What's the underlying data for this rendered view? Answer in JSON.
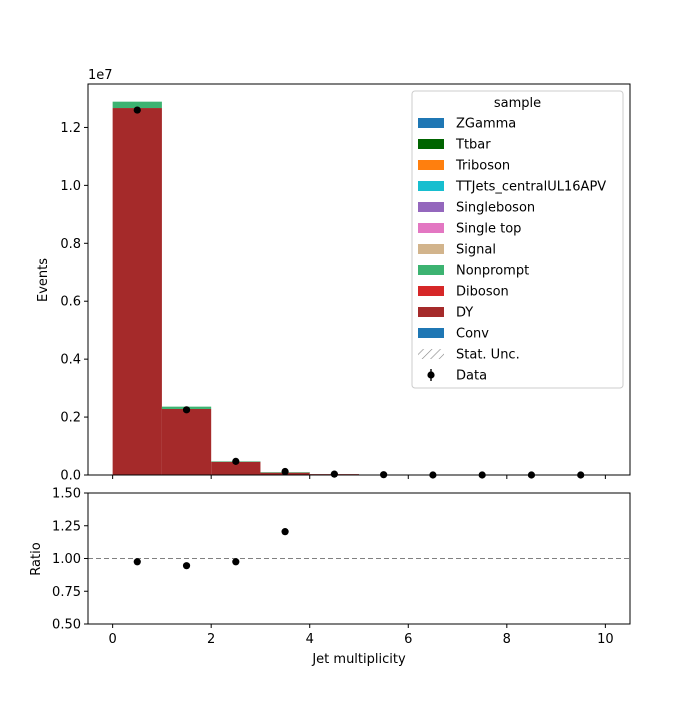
{
  "chart_data": [
    {
      "type": "bar",
      "stacked": true,
      "xlabel": "",
      "ylabel": "Events",
      "y_multiplier_label": "1e7",
      "xlim": [
        -0.5,
        10.5
      ],
      "ylim": [
        0,
        13.5
      ],
      "y_unit_note": "values in units of 1e7",
      "yticks": [
        "0.0",
        "0.2",
        "0.4",
        "0.6",
        "0.8",
        "1.0",
        "1.2"
      ],
      "bins": [
        [
          0,
          1
        ],
        [
          1,
          2
        ],
        [
          2,
          3
        ],
        [
          3,
          4
        ],
        [
          4,
          5
        ],
        [
          5,
          6
        ],
        [
          6,
          7
        ],
        [
          7,
          8
        ],
        [
          8,
          9
        ],
        [
          9,
          10
        ]
      ],
      "series": [
        {
          "name": "DY",
          "color": "#a52a2a",
          "values": [
            12.67,
            2.28,
            0.46,
            0.09,
            0.03,
            0.005,
            0.0,
            0.0,
            0.0,
            0.0
          ]
        },
        {
          "name": "Nonprompt",
          "color": "#3cb371",
          "values": [
            0.22,
            0.08,
            0.01,
            0.002,
            0.0,
            0.0,
            0.0,
            0.0,
            0.0,
            0.0
          ]
        }
      ],
      "data_points": {
        "name": "Data",
        "x": [
          0.5,
          1.5,
          2.5,
          3.5,
          4.5,
          5.5,
          6.5,
          7.5,
          8.5,
          9.5
        ],
        "y": [
          12.6,
          2.25,
          0.47,
          0.12,
          0.03,
          0.01,
          0.0,
          0.0,
          0.0,
          0.0
        ]
      },
      "legend": {
        "title": "sample",
        "placement": "top-right",
        "entries": [
          {
            "label": "ZGamma",
            "kind": "patch",
            "color": "#1f77b4"
          },
          {
            "label": "Ttbar",
            "kind": "patch",
            "color": "#006400"
          },
          {
            "label": "Triboson",
            "kind": "patch",
            "color": "#ff7f0e"
          },
          {
            "label": "TTJets_centralUL16APV",
            "kind": "patch",
            "color": "#17becf"
          },
          {
            "label": "Singleboson",
            "kind": "patch",
            "color": "#9467bd"
          },
          {
            "label": "Single top",
            "kind": "patch",
            "color": "#e377c2"
          },
          {
            "label": "Signal",
            "kind": "patch",
            "color": "#d2b48c"
          },
          {
            "label": "Nonprompt",
            "kind": "patch",
            "color": "#3cb371"
          },
          {
            "label": "Diboson",
            "kind": "patch",
            "color": "#d62728"
          },
          {
            "label": "DY",
            "kind": "patch",
            "color": "#a52a2a"
          },
          {
            "label": "Conv",
            "kind": "patch",
            "color": "#1f77b4"
          },
          {
            "label": "Stat. Unc.",
            "kind": "hatch",
            "color": "#888888"
          },
          {
            "label": "Data",
            "kind": "errorbar",
            "color": "#000000"
          }
        ]
      }
    },
    {
      "type": "scatter",
      "xlabel": "Jet multiplicity",
      "ylabel": "Ratio",
      "xlim": [
        -0.5,
        10.5
      ],
      "ylim": [
        0.5,
        1.5
      ],
      "xticks": [
        "0",
        "2",
        "4",
        "6",
        "8",
        "10"
      ],
      "yticks": [
        "0.50",
        "0.75",
        "1.00",
        "1.25",
        "1.50"
      ],
      "reference_line": 1.0,
      "x": [
        0.5,
        1.5,
        2.5,
        3.5
      ],
      "y": [
        0.975,
        0.945,
        0.975,
        1.205
      ]
    }
  ]
}
